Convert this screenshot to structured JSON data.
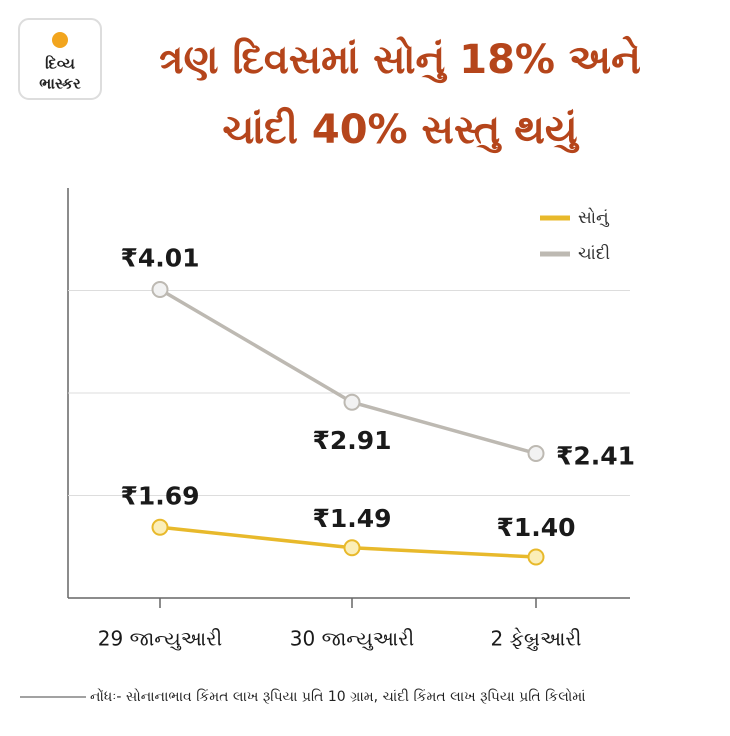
{
  "logo": [
    "દિવ્ય",
    "ભાસ્કર"
  ],
  "chart_data": {
    "type": "line",
    "title_lines": [
      "ત્રણ દિવસમાં સોનું 18% અને",
      "ચાંદી 40% સસ્તુ થયું"
    ],
    "categories": [
      "29 જાન્યુઆરી",
      "30 જાન્યુઆરી",
      "2 ફેબ્રુઆરી"
    ],
    "series": [
      {
        "name": "સોનું",
        "color": "#e8b92b",
        "values": [
          1.69,
          1.49,
          1.4
        ],
        "value_labels": [
          "₹1.69",
          "₹1.49",
          "₹1.40"
        ]
      },
      {
        "name": "ચાંદી",
        "color": "#bdb9b2",
        "values": [
          4.01,
          2.91,
          2.41
        ],
        "value_labels": [
          "₹4.01",
          "₹2.91",
          "₹2.41"
        ]
      }
    ],
    "ylim": [
      1,
      5
    ],
    "yticks": [
      2,
      3,
      4
    ],
    "grid": true,
    "legend": "top-right",
    "note": "નોંધઃ- સોનાનાભાવ કિંમત લાખ રૂપિયા પ્રતિ 10 ગ્રામ, ચાંદી કિંમત લાખ રૂપિયા પ્રતિ કિલોમાં"
  }
}
